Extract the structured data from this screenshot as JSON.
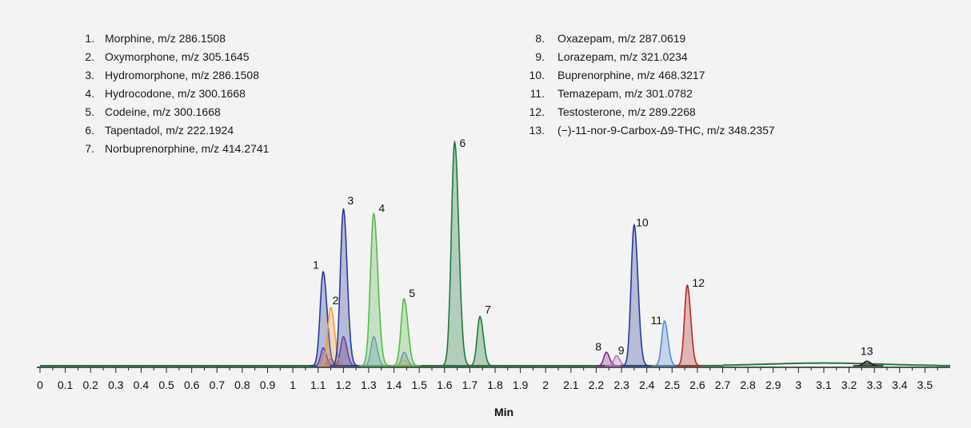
{
  "chart_data": {
    "type": "line",
    "xlabel": "Min",
    "ylabel": "",
    "xlim": [
      0,
      3.6
    ],
    "ylim": [
      0,
      100
    ],
    "x_ticks": [
      "0",
      "0.1",
      "0.2",
      "0.3",
      "0.4",
      "0.5",
      "0.6",
      "0.7",
      "0.8",
      "0.9",
      "1",
      "1.1",
      "1.2",
      "1.3",
      "1.4",
      "1.5",
      "1.6",
      "1.7",
      "1.8",
      "1.9",
      "2",
      "2.1",
      "2.2",
      "2.3",
      "2.4",
      "2.5",
      "2.6",
      "2.7",
      "2.8",
      "2.9",
      "3",
      "3.1",
      "3.2",
      "3.3",
      "3.4",
      "3.5"
    ],
    "grid": false,
    "legend": {
      "placement": "top",
      "entries": [
        {
          "num": "1.",
          "text": "Morphine, m/z 286.1508"
        },
        {
          "num": "2.",
          "text": "Oxymorphone, m/z 305.1645"
        },
        {
          "num": "3.",
          "text": "Hydromorphone, m/z 286.1508"
        },
        {
          "num": "4.",
          "text": "Hydrocodone, m/z 300.1668"
        },
        {
          "num": "5.",
          "text": "Codeine, m/z 300.1668"
        },
        {
          "num": "6.",
          "text": "Tapentadol, m/z 222.1924"
        },
        {
          "num": "7.",
          "text": "Norbuprenorphine, m/z 414.2741"
        },
        {
          "num": "8.",
          "text": "Oxazepam, m/z 287.0619"
        },
        {
          "num": "9.",
          "text": "Lorazepam, m/z 321.0234"
        },
        {
          "num": "10.",
          "text": "Buprenorphine, m/z 468.3217"
        },
        {
          "num": "11.",
          "text": "Temazepam, m/z 301.0782"
        },
        {
          "num": "12.",
          "text": "Testosterone, m/z 289.2268"
        },
        {
          "num": "13.",
          "text": "(−)-11-nor-9-Carbox-Δ9-THC, m/z 348.2357"
        }
      ]
    },
    "peaks": [
      {
        "label": "1",
        "rt": 1.12,
        "height": 42,
        "width": 0.012,
        "color": "#2a3a9a"
      },
      {
        "label": "2",
        "rt": 1.15,
        "height": 26,
        "width": 0.012,
        "color": "#f0a040"
      },
      {
        "label": "3",
        "rt": 1.2,
        "height": 70,
        "width": 0.012,
        "color": "#2a3a9a"
      },
      {
        "label": "4",
        "rt": 1.32,
        "height": 68,
        "width": 0.013,
        "color": "#5ab850"
      },
      {
        "label": "5",
        "rt": 1.44,
        "height": 30,
        "width": 0.012,
        "color": "#5ab850"
      },
      {
        "label": "6",
        "rt": 1.64,
        "height": 100,
        "width": 0.013,
        "color": "#1f7a3c"
      },
      {
        "label": "7",
        "rt": 1.74,
        "height": 22,
        "width": 0.011,
        "color": "#1f7a3c"
      },
      {
        "label": "8",
        "rt": 2.24,
        "height": 6,
        "width": 0.01,
        "color": "#7a2a8a"
      },
      {
        "label": "9",
        "rt": 2.28,
        "height": 4.5,
        "width": 0.01,
        "color": "#c070c0"
      },
      {
        "label": "10",
        "rt": 2.35,
        "height": 63,
        "width": 0.012,
        "color": "#2a3a9a"
      },
      {
        "label": "11",
        "rt": 2.47,
        "height": 20,
        "width": 0.011,
        "color": "#5a8ad0"
      },
      {
        "label": "12",
        "rt": 2.56,
        "height": 36,
        "width": 0.011,
        "color": "#b22a2a"
      },
      {
        "label": "13",
        "rt": 3.27,
        "height": 2,
        "width": 0.012,
        "color": "#1a1a1a"
      }
    ],
    "minor_peaks": [
      {
        "rt": 1.12,
        "height": 8,
        "width": 0.01,
        "color": "#7a2a8a"
      },
      {
        "rt": 1.2,
        "height": 13,
        "width": 0.011,
        "color": "#7a2a8a"
      },
      {
        "rt": 1.32,
        "height": 13,
        "width": 0.011,
        "color": "#5a8ad0"
      },
      {
        "rt": 1.44,
        "height": 6,
        "width": 0.01,
        "color": "#5a8ad0"
      },
      {
        "rt": 1.44,
        "height": 2.5,
        "width": 0.01,
        "color": "#f0a040"
      },
      {
        "rt": 1.15,
        "height": 3,
        "width": 0.01,
        "color": "#c070c0"
      }
    ],
    "baseline": {
      "color": "#1f7a3c",
      "hump_center": 3.1,
      "hump_height": 1.2,
      "hump_width": 0.22
    }
  }
}
